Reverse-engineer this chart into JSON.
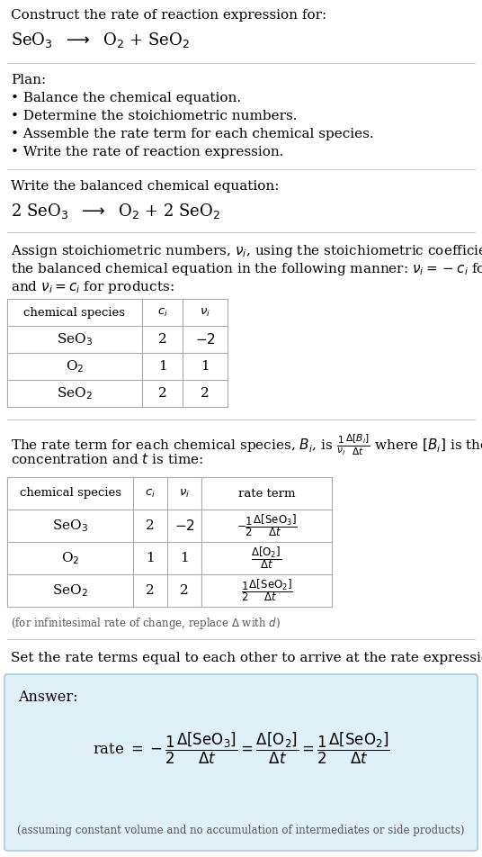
{
  "title_line1": "Construct the rate of reaction expression for:",
  "section_bg": "#ffffff",
  "answer_bg": "#dff0f7",
  "answer_border": "#a8c8e0",
  "text_color": "#000000",
  "gray_text": "#666666",
  "plan_header": "Plan:",
  "plan_items": [
    "• Balance the chemical equation.",
    "• Determine the stoichiometric numbers.",
    "• Assemble the rate term for each chemical species.",
    "• Write the rate of reaction expression."
  ],
  "balanced_header": "Write the balanced chemical equation:",
  "set_rate_text": "Set the rate terms equal to each other to arrive at the rate expression:",
  "answer_label": "Answer:",
  "footnote": "(assuming constant volume and no accumulation of intermediates or side products)"
}
